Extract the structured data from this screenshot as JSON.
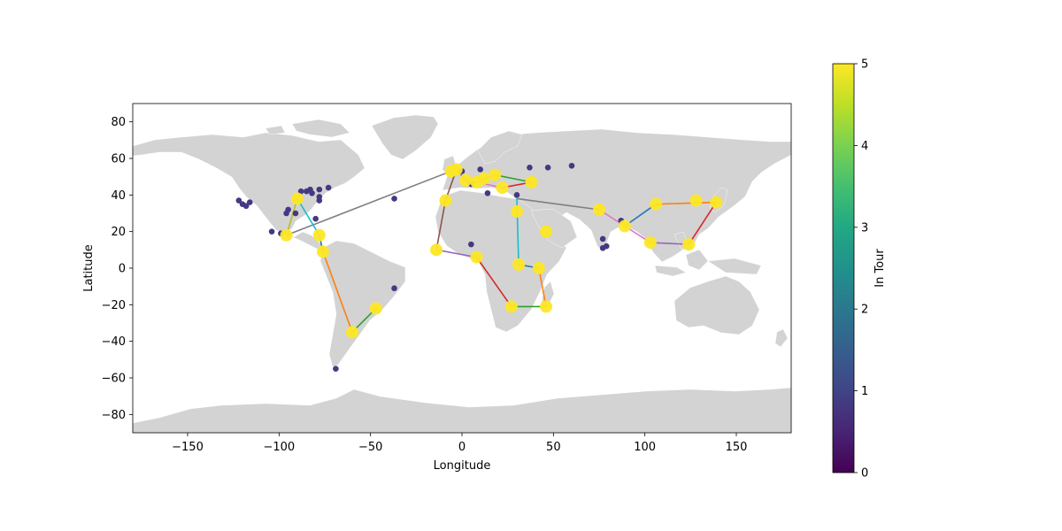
{
  "chart_data": {
    "type": "scatter",
    "xlabel": "Longitude",
    "ylabel": "Latitude",
    "xlim": [
      -180,
      180
    ],
    "ylim": [
      -90,
      90
    ],
    "xticks": [
      -150,
      -100,
      -50,
      0,
      50,
      100,
      150
    ],
    "yticks": [
      -80,
      -60,
      -40,
      -20,
      0,
      20,
      40,
      60,
      80
    ],
    "grid": false,
    "colorbar": {
      "label": "In Tour",
      "min": 0,
      "max": 5,
      "ticks": [
        0,
        1,
        2,
        3,
        4,
        5
      ],
      "colormap": "viridis"
    },
    "colors": {
      "land": "#d3d3d3",
      "tour_point": "#fde725",
      "other_point": "#443983"
    },
    "points_in_tour": [
      [
        -96,
        18
      ],
      [
        -90,
        38
      ],
      [
        -78,
        18
      ],
      [
        -76,
        9
      ],
      [
        -60,
        -35
      ],
      [
        -47,
        -22
      ],
      [
        -14,
        10
      ],
      [
        -9,
        37
      ],
      [
        -6,
        53
      ],
      [
        -3,
        54
      ],
      [
        2,
        48
      ],
      [
        8,
        47
      ],
      [
        8,
        6
      ],
      [
        12,
        49
      ],
      [
        18,
        51
      ],
      [
        22,
        44
      ],
      [
        27,
        -21
      ],
      [
        30,
        31
      ],
      [
        31,
        2
      ],
      [
        38,
        47
      ],
      [
        42,
        0
      ],
      [
        46,
        20
      ],
      [
        46,
        -21
      ],
      [
        75,
        32
      ],
      [
        89,
        23
      ],
      [
        103,
        14
      ],
      [
        106,
        35
      ],
      [
        124,
        13
      ],
      [
        128,
        37
      ],
      [
        139,
        36
      ]
    ],
    "points_not_in_tour": [
      [
        -122,
        37
      ],
      [
        -120,
        35
      ],
      [
        -118,
        34
      ],
      [
        -116,
        36
      ],
      [
        -104,
        20
      ],
      [
        -99,
        19
      ],
      [
        -96,
        30
      ],
      [
        -95,
        32
      ],
      [
        -91,
        30
      ],
      [
        -88,
        42
      ],
      [
        -85,
        42
      ],
      [
        -83,
        43
      ],
      [
        -82,
        41
      ],
      [
        -78,
        43
      ],
      [
        -78,
        39
      ],
      [
        -78,
        37
      ],
      [
        -80,
        27
      ],
      [
        -73,
        44
      ],
      [
        -37,
        38
      ],
      [
        -37,
        -11
      ],
      [
        -69,
        -55
      ],
      [
        0,
        53
      ],
      [
        5,
        46
      ],
      [
        10,
        54
      ],
      [
        14,
        41
      ],
      [
        5,
        13
      ],
      [
        30,
        40
      ],
      [
        37,
        55
      ],
      [
        47,
        55
      ],
      [
        60,
        56
      ],
      [
        77,
        16
      ],
      [
        77,
        11
      ],
      [
        79,
        12
      ],
      [
        87,
        26
      ]
    ],
    "tour_segments": [
      {
        "from": [
          -96,
          18
        ],
        "to": [
          -6,
          53
        ],
        "color": "#7f7f7f"
      },
      {
        "from": [
          -96,
          18
        ],
        "to": [
          -90,
          38
        ],
        "color": "#bcbd22"
      },
      {
        "from": [
          -90,
          38
        ],
        "to": [
          -78,
          18
        ],
        "color": "#17becf"
      },
      {
        "from": [
          -78,
          18
        ],
        "to": [
          -76,
          9
        ],
        "color": "#1f77b4"
      },
      {
        "from": [
          -76,
          9
        ],
        "to": [
          -60,
          -35
        ],
        "color": "#ff7f0e"
      },
      {
        "from": [
          -60,
          -35
        ],
        "to": [
          -47,
          -22
        ],
        "color": "#2ca02c"
      },
      {
        "from": [
          -6,
          53
        ],
        "to": [
          -3,
          54
        ],
        "color": "#d62728"
      },
      {
        "from": [
          -3,
          54
        ],
        "to": [
          2,
          48
        ],
        "color": "#9467bd"
      },
      {
        "from": [
          2,
          48
        ],
        "to": [
          8,
          47
        ],
        "color": "#8c564b"
      },
      {
        "from": [
          -9,
          37
        ],
        "to": [
          -14,
          10
        ],
        "color": "#8c564b"
      },
      {
        "from": [
          -9,
          37
        ],
        "to": [
          -3,
          54
        ],
        "color": "#8c564b"
      },
      {
        "from": [
          -14,
          10
        ],
        "to": [
          8,
          6
        ],
        "color": "#9467bd"
      },
      {
        "from": [
          8,
          6
        ],
        "to": [
          27,
          -21
        ],
        "color": "#d62728"
      },
      {
        "from": [
          27,
          -21
        ],
        "to": [
          46,
          -21
        ],
        "color": "#2ca02c"
      },
      {
        "from": [
          46,
          -21
        ],
        "to": [
          42,
          0
        ],
        "color": "#ff7f0e"
      },
      {
        "from": [
          42,
          0
        ],
        "to": [
          31,
          2
        ],
        "color": "#1f77b4"
      },
      {
        "from": [
          31,
          2
        ],
        "to": [
          30,
          38
        ],
        "color": "#17becf"
      },
      {
        "from": [
          30,
          38
        ],
        "to": [
          75,
          32
        ],
        "color": "#7f7f7f"
      },
      {
        "from": [
          75,
          32
        ],
        "to": [
          103,
          14
        ],
        "color": "#e377c2"
      },
      {
        "from": [
          103,
          14
        ],
        "to": [
          124,
          13
        ],
        "color": "#9467bd"
      },
      {
        "from": [
          124,
          13
        ],
        "to": [
          139,
          36
        ],
        "color": "#d62728"
      },
      {
        "from": [
          139,
          36
        ],
        "to": [
          106,
          35
        ],
        "color": "#ff7f0e"
      },
      {
        "from": [
          106,
          35
        ],
        "to": [
          89,
          23
        ],
        "color": "#1f77b4"
      },
      {
        "from": [
          8,
          47
        ],
        "to": [
          18,
          51
        ],
        "color": "#2ca02c"
      },
      {
        "from": [
          18,
          51
        ],
        "to": [
          38,
          47
        ],
        "color": "#2ca02c"
      },
      {
        "from": [
          8,
          47
        ],
        "to": [
          22,
          44
        ],
        "color": "#e377c2"
      },
      {
        "from": [
          22,
          44
        ],
        "to": [
          38,
          47
        ],
        "color": "#d62728"
      },
      {
        "from": [
          12,
          49
        ],
        "to": [
          18,
          51
        ],
        "color": "#9467bd"
      }
    ]
  }
}
